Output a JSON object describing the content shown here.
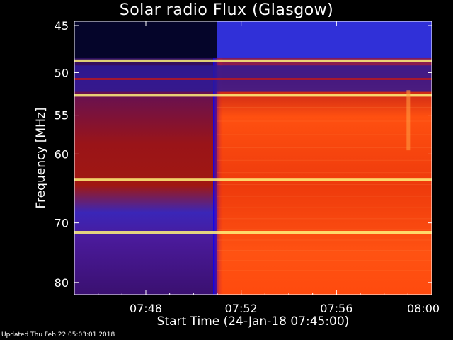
{
  "chart_data": {
    "type": "heatmap",
    "title": "Solar radio Flux (Glasgow)",
    "xlabel": "Start Time (24-Jan-18 07:45:00)",
    "ylabel": "Frequency [MHz]",
    "x_ticks": [
      "07:48",
      "07:52",
      "07:56",
      "08:00"
    ],
    "x_tick_minutes": [
      48,
      52,
      56,
      60
    ],
    "xlim_minutes": [
      45,
      60
    ],
    "y_ticks": [
      45,
      50,
      55,
      60,
      70,
      80
    ],
    "ylim": [
      45,
      80
    ],
    "onset_time": "07:51",
    "interference_bands_mhz": [
      48.7,
      52.6,
      63.5,
      71.5
    ],
    "colors": {
      "background": "#000000",
      "quiet_dark": "#2a0f7a",
      "quiet_blue": "#3b2fd0",
      "active_red": "#e8200c",
      "active_orange": "#ff5a10",
      "band_yellow": "#fff27a"
    }
  },
  "footer": "Updated Thu Feb 22 05:03:01 2018"
}
